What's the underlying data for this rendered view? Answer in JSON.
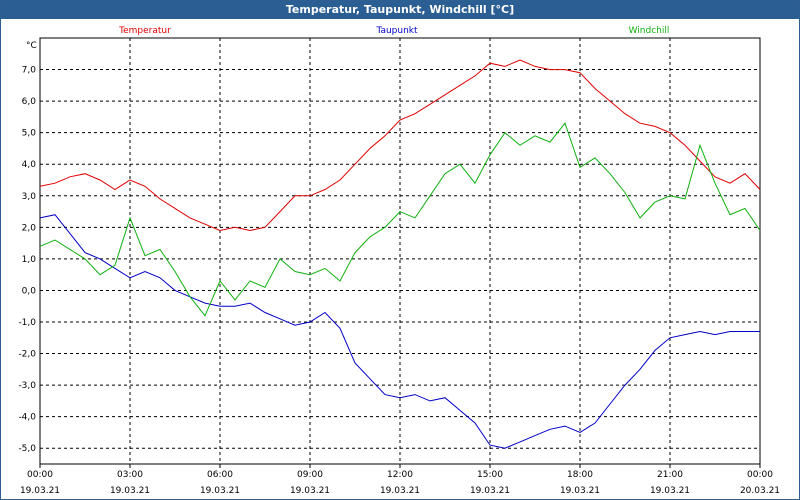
{
  "window": {
    "title": "Temperatur, Taupunkt, Windchill [°C]"
  },
  "colors": {
    "temperature": "#e00000",
    "dewpoint": "#0000c8",
    "windchill": "#10b010",
    "titlebar": "#2b5f93",
    "grid": "#000000"
  },
  "chart_data": {
    "type": "line",
    "title": "Temperatur, Taupunkt, Windchill [°C]",
    "ylabel": "°C",
    "ylim": [
      -5.5,
      8.0
    ],
    "yticks": [
      -5.0,
      -4.0,
      -3.0,
      -2.0,
      -1.0,
      0.0,
      1.0,
      2.0,
      3.0,
      4.0,
      5.0,
      6.0,
      7.0
    ],
    "ytick_labels": [
      "-5,0",
      "-4,0",
      "-3,0",
      "-2,0",
      "-1,0",
      "0,0",
      "1,0",
      "2,0",
      "3,0",
      "4,0",
      "5,0",
      "6,0",
      "7,0"
    ],
    "xlim": [
      0,
      24
    ],
    "xticks": [
      0,
      3,
      6,
      9,
      12,
      15,
      18,
      21,
      24
    ],
    "xtick_time_labels": [
      "00:00",
      "03:00",
      "06:00",
      "09:00",
      "12:00",
      "15:00",
      "18:00",
      "21:00",
      "00:00"
    ],
    "xtick_date_labels": [
      "19.03.21",
      "19.03.21",
      "19.03.21",
      "19.03.21",
      "19.03.21",
      "19.03.21",
      "19.03.21",
      "19.03.21",
      "20.03.21"
    ],
    "grid": true,
    "series": [
      {
        "name": "Temperatur",
        "x": [
          0,
          0.5,
          1,
          1.5,
          2,
          2.5,
          3,
          3.5,
          4,
          4.5,
          5,
          5.5,
          6,
          6.5,
          7,
          7.5,
          8,
          8.5,
          9,
          9.5,
          10,
          10.5,
          11,
          11.5,
          12,
          12.5,
          13,
          13.5,
          14,
          14.5,
          15,
          15.5,
          16,
          16.5,
          17,
          17.5,
          18,
          18.5,
          19,
          19.5,
          20,
          20.5,
          21,
          21.5,
          22,
          22.5,
          23,
          23.5,
          24
        ],
        "values": [
          3.3,
          3.4,
          3.6,
          3.7,
          3.5,
          3.2,
          3.5,
          3.3,
          2.9,
          2.6,
          2.3,
          2.1,
          1.9,
          2.0,
          1.9,
          2.0,
          2.5,
          3.0,
          3.0,
          3.2,
          3.5,
          4.0,
          4.5,
          4.9,
          5.4,
          5.6,
          5.9,
          6.2,
          6.5,
          6.8,
          7.2,
          7.1,
          7.3,
          7.1,
          7.0,
          7.0,
          6.9,
          6.4,
          6.0,
          5.6,
          5.3,
          5.2,
          5.0,
          4.6,
          4.1,
          3.6,
          3.4,
          3.7,
          3.2
        ]
      },
      {
        "name": "Taupunkt",
        "x": [
          0,
          0.5,
          1,
          1.5,
          2,
          2.5,
          3,
          3.5,
          4,
          4.5,
          5,
          5.5,
          6,
          6.5,
          7,
          7.5,
          8,
          8.5,
          9,
          9.5,
          10,
          10.5,
          11,
          11.5,
          12,
          12.5,
          13,
          13.5,
          14,
          14.5,
          15,
          15.5,
          16,
          16.5,
          17,
          17.5,
          18,
          18.5,
          19,
          19.5,
          20,
          20.5,
          21,
          21.5,
          22,
          22.5,
          23,
          23.5,
          24
        ],
        "values": [
          2.3,
          2.4,
          1.8,
          1.2,
          1.0,
          0.7,
          0.4,
          0.6,
          0.4,
          0.0,
          -0.2,
          -0.4,
          -0.5,
          -0.5,
          -0.4,
          -0.7,
          -0.9,
          -1.1,
          -1.0,
          -0.7,
          -1.2,
          -2.3,
          -2.8,
          -3.3,
          -3.4,
          -3.3,
          -3.5,
          -3.4,
          -3.8,
          -4.2,
          -4.9,
          -5.0,
          -4.8,
          -4.6,
          -4.4,
          -4.3,
          -4.5,
          -4.2,
          -3.6,
          -3.0,
          -2.5,
          -1.9,
          -1.5,
          -1.4,
          -1.3,
          -1.4,
          -1.3,
          -1.3,
          -1.3
        ]
      },
      {
        "name": "Windchill",
        "x": [
          0,
          0.5,
          1,
          1.5,
          2,
          2.5,
          3,
          3.5,
          4,
          4.5,
          5,
          5.5,
          6,
          6.5,
          7,
          7.5,
          8,
          8.5,
          9,
          9.5,
          10,
          10.5,
          11,
          11.5,
          12,
          12.5,
          13,
          13.5,
          14,
          14.5,
          15,
          15.5,
          16,
          16.5,
          17,
          17.5,
          18,
          18.5,
          19,
          19.5,
          20,
          20.5,
          21,
          21.5,
          22,
          22.5,
          23,
          23.5,
          24
        ],
        "values": [
          1.4,
          1.6,
          1.3,
          1.0,
          0.5,
          0.8,
          2.3,
          1.1,
          1.3,
          0.6,
          -0.2,
          -0.8,
          0.3,
          -0.3,
          0.3,
          0.1,
          1.0,
          0.6,
          0.5,
          0.7,
          0.3,
          1.2,
          1.7,
          2.0,
          2.5,
          2.3,
          3.0,
          3.7,
          4.0,
          3.4,
          4.3,
          5.0,
          4.6,
          4.9,
          4.7,
          5.3,
          3.9,
          4.2,
          3.7,
          3.1,
          2.3,
          2.8,
          3.0,
          2.9,
          4.6,
          3.4,
          2.4,
          2.6,
          1.9
        ]
      }
    ]
  }
}
